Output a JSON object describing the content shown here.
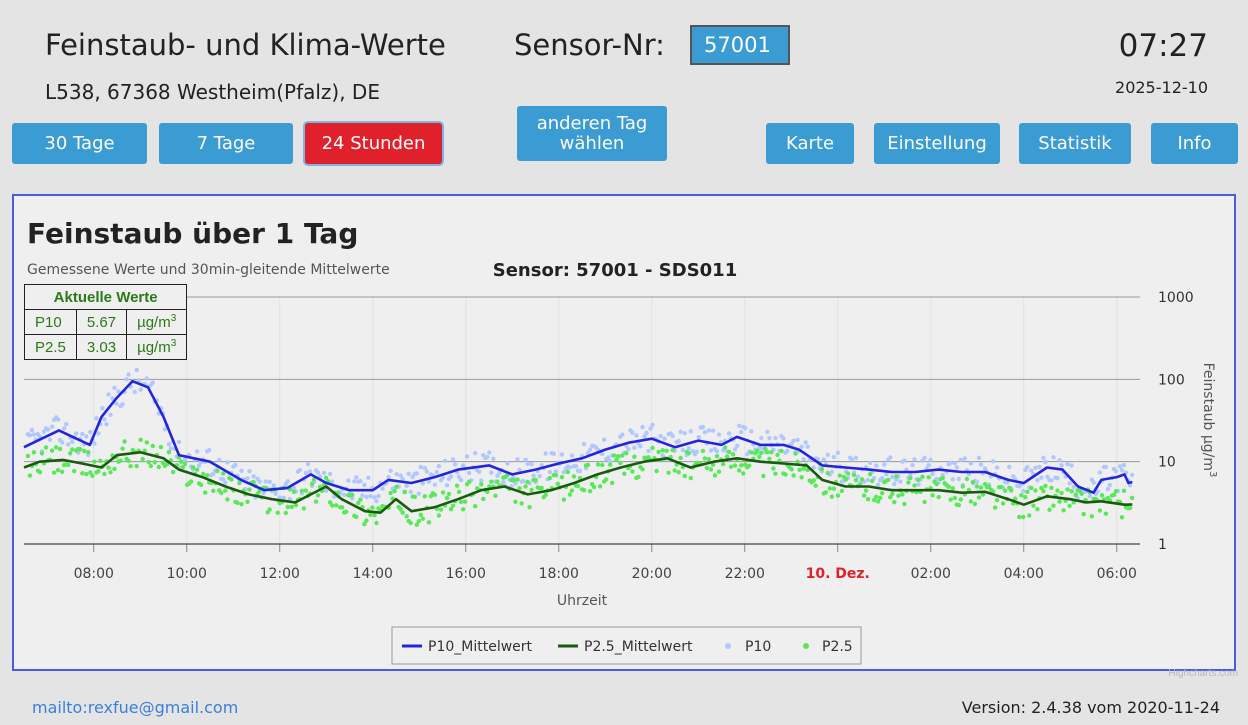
{
  "header": {
    "title": "Feinstaub- und Klima-Werte",
    "sensor_label": "Sensor-Nr:",
    "sensor_value": "57001",
    "time": "07:27",
    "location": "L538, 67368 Westheim(Pfalz), DE",
    "date": "2025-12-10"
  },
  "nav": {
    "btn_30": "30 Tage",
    "btn_7": "7 Tage",
    "btn_24": "24 Stunden",
    "btn_other_line1": "anderen Tag",
    "btn_other_line2": "wählen",
    "btn_map": "Karte",
    "btn_settings": "Einstellung",
    "btn_stats": "Statistik",
    "btn_info": "Info"
  },
  "current": {
    "title": "Aktuelle Werte",
    "rows": [
      {
        "name": "P10",
        "value": "5.67",
        "unit": "µg/m",
        "sup": "3"
      },
      {
        "name": "P2.5",
        "value": "3.03",
        "unit": "µg/m",
        "sup": "3"
      }
    ]
  },
  "chart_data": {
    "type": "line",
    "title": "Feinstaub über 1 Tag",
    "subtitle": "Gemessene Werte und 30min-gleitende Mittelwerte",
    "sensor_title": "Sensor: 57001 - SDS011",
    "xlabel": "Uhrzeit",
    "ylabel": "Feinstaub µg/m",
    "ylabel_sup": "3",
    "yscale": "log",
    "ylim": [
      1,
      1000
    ],
    "y_ticks": [
      "1",
      "10",
      "100",
      "1000"
    ],
    "xlim": [
      "07:27",
      "06:30"
    ],
    "x_ticks": [
      {
        "t": "08:00",
        "label": "08:00",
        "highlight": false
      },
      {
        "t": "10:00",
        "label": "10:00",
        "highlight": false
      },
      {
        "t": "12:00",
        "label": "12:00",
        "highlight": false
      },
      {
        "t": "14:00",
        "label": "14:00",
        "highlight": false
      },
      {
        "t": "16:00",
        "label": "16:00",
        "highlight": false
      },
      {
        "t": "18:00",
        "label": "18:00",
        "highlight": false
      },
      {
        "t": "20:00",
        "label": "20:00",
        "highlight": false
      },
      {
        "t": "22:00",
        "label": "22:00",
        "highlight": false
      },
      {
        "t": "00:00",
        "label": "10. Dez.",
        "highlight": true
      },
      {
        "t": "02:00",
        "label": "02:00",
        "highlight": false
      },
      {
        "t": "04:00",
        "label": "04:00",
        "highlight": false
      },
      {
        "t": "06:00",
        "label": "06:00",
        "highlight": false
      }
    ],
    "grid": true,
    "legend_position": "bottom-center",
    "series": [
      {
        "name": "P10_Mittelwert",
        "kind": "line",
        "color": "#2424e0",
        "points": [
          [
            "06:30",
            15
          ],
          [
            "07:15",
            24
          ],
          [
            "07:55",
            16
          ],
          [
            "08:10",
            35
          ],
          [
            "08:30",
            60
          ],
          [
            "08:50",
            95
          ],
          [
            "09:10",
            80
          ],
          [
            "09:30",
            35
          ],
          [
            "09:50",
            12
          ],
          [
            "10:30",
            10
          ],
          [
            "11:10",
            6
          ],
          [
            "11:40",
            4.5
          ],
          [
            "12:10",
            4.8
          ],
          [
            "12:40",
            7
          ],
          [
            "13:00",
            5.5
          ],
          [
            "13:30",
            4.5
          ],
          [
            "14:00",
            4.5
          ],
          [
            "14:20",
            6
          ],
          [
            "14:50",
            5.5
          ],
          [
            "15:20",
            6.5
          ],
          [
            "15:50",
            8
          ],
          [
            "16:30",
            9
          ],
          [
            "17:00",
            7
          ],
          [
            "17:30",
            8
          ],
          [
            "18:00",
            9.5
          ],
          [
            "18:30",
            11
          ],
          [
            "19:00",
            14
          ],
          [
            "19:30",
            17
          ],
          [
            "20:00",
            19
          ],
          [
            "20:30",
            15
          ],
          [
            "21:00",
            18
          ],
          [
            "21:30",
            16
          ],
          [
            "21:50",
            20
          ],
          [
            "22:20",
            16
          ],
          [
            "22:50",
            16
          ],
          [
            "23:10",
            14
          ],
          [
            "23:40",
            9
          ],
          [
            "00:10",
            8.5
          ],
          [
            "00:40",
            8
          ],
          [
            "01:10",
            7.5
          ],
          [
            "01:40",
            7.5
          ],
          [
            "02:10",
            8
          ],
          [
            "02:40",
            7.5
          ],
          [
            "03:10",
            7.5
          ],
          [
            "03:40",
            6
          ],
          [
            "04:00",
            5.5
          ],
          [
            "04:30",
            8.5
          ],
          [
            "04:50",
            8
          ],
          [
            "05:10",
            5
          ],
          [
            "05:30",
            4.2
          ],
          [
            "05:40",
            6
          ],
          [
            "06:00",
            6.5
          ],
          [
            "06:10",
            7
          ],
          [
            "06:15",
            5.5
          ],
          [
            "06:20",
            5.67
          ]
        ]
      },
      {
        "name": "P2.5_Mittelwert",
        "kind": "line",
        "color": "#1a5a10",
        "points": [
          [
            "06:30",
            8.5
          ],
          [
            "06:50",
            10
          ],
          [
            "07:20",
            10.5
          ],
          [
            "07:45",
            9.5
          ],
          [
            "08:10",
            8.5
          ],
          [
            "08:30",
            12
          ],
          [
            "09:00",
            13
          ],
          [
            "09:30",
            11
          ],
          [
            "09:50",
            8
          ],
          [
            "10:20",
            6.5
          ],
          [
            "10:50",
            5
          ],
          [
            "11:20",
            4
          ],
          [
            "11:50",
            3.5
          ],
          [
            "12:20",
            3.2
          ],
          [
            "12:40",
            4
          ],
          [
            "13:00",
            5
          ],
          [
            "13:20",
            3.5
          ],
          [
            "13:50",
            2.5
          ],
          [
            "14:10",
            2.4
          ],
          [
            "14:30",
            3.5
          ],
          [
            "14:50",
            2.5
          ],
          [
            "15:20",
            2.8
          ],
          [
            "15:50",
            3.5
          ],
          [
            "16:20",
            4.5
          ],
          [
            "16:50",
            5
          ],
          [
            "17:20",
            4
          ],
          [
            "17:50",
            4.5
          ],
          [
            "18:20",
            5.5
          ],
          [
            "18:50",
            7
          ],
          [
            "19:20",
            8.5
          ],
          [
            "19:50",
            10
          ],
          [
            "20:20",
            11
          ],
          [
            "20:50",
            8.5
          ],
          [
            "21:20",
            10
          ],
          [
            "21:50",
            11
          ],
          [
            "22:20",
            10
          ],
          [
            "22:50",
            9.5
          ],
          [
            "23:20",
            9
          ],
          [
            "23:40",
            6
          ],
          [
            "00:10",
            5
          ],
          [
            "00:40",
            5
          ],
          [
            "01:10",
            4.5
          ],
          [
            "01:40",
            4.5
          ],
          [
            "02:10",
            4.5
          ],
          [
            "02:40",
            4.2
          ],
          [
            "03:10",
            4.3
          ],
          [
            "03:40",
            3.5
          ],
          [
            "04:00",
            3
          ],
          [
            "04:30",
            3.8
          ],
          [
            "05:00",
            3.5
          ],
          [
            "05:20",
            3.2
          ],
          [
            "05:40",
            3.3
          ],
          [
            "06:10",
            3.0
          ],
          [
            "06:20",
            3.03
          ]
        ]
      },
      {
        "name": "P10",
        "kind": "scatter",
        "color": "#b0c8ff"
      },
      {
        "name": "P2.5",
        "kind": "scatter",
        "color": "#58e858"
      }
    ]
  },
  "footer": {
    "mailto": "mailto:rexfue@gmail.com",
    "version": "Version: 2.4.38 vom 2020-11-24",
    "credit": "Highcharts.com"
  }
}
